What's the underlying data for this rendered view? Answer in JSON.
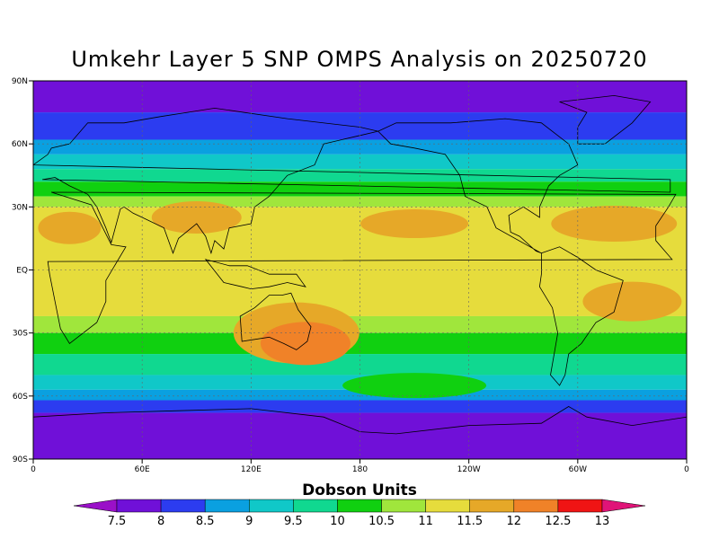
{
  "title": "Umkehr Layer 5 SNP OMPS Analysis on 20250720",
  "colorbar": {
    "title": "Dobson Units",
    "ticks": [
      "7.5",
      "8",
      "8.5",
      "9",
      "9.5",
      "10",
      "10.5",
      "11",
      "11.5",
      "12",
      "12.5",
      "13"
    ],
    "colors": [
      "#9a10c8",
      "#7010d8",
      "#2c3cf0",
      "#0aa0e0",
      "#10c8c8",
      "#10d890",
      "#10d010",
      "#a0e63c",
      "#e6dc3c",
      "#e6a828",
      "#f08228",
      "#f01414",
      "#e01478"
    ]
  },
  "chart_data": {
    "type": "heatmap",
    "title": "Umkehr Layer 5 SNP OMPS Analysis on 20250720",
    "units": "Dobson Units",
    "x_ticks": [
      "0",
      "60E",
      "120E",
      "180",
      "120W",
      "60W",
      "0"
    ],
    "y_ticks": [
      "90N",
      "60N",
      "30N",
      "EQ",
      "30S",
      "60S",
      "90S"
    ],
    "xlim": [
      0,
      360
    ],
    "ylim": [
      -90,
      90
    ],
    "grid": true,
    "zonal_bands": [
      {
        "lat_from": 90,
        "lat_to": 75,
        "value": 7.5
      },
      {
        "lat_from": 75,
        "lat_to": 62,
        "value": 8
      },
      {
        "lat_from": 62,
        "lat_to": 55,
        "value": 8.5
      },
      {
        "lat_from": 55,
        "lat_to": 48,
        "value": 9
      },
      {
        "lat_from": 48,
        "lat_to": 42,
        "value": 9.5
      },
      {
        "lat_from": 42,
        "lat_to": 35,
        "value": 10
      },
      {
        "lat_from": 35,
        "lat_to": 30,
        "value": 10.5
      },
      {
        "lat_from": 30,
        "lat_to": -22,
        "value": 11
      },
      {
        "lat_from": -22,
        "lat_to": -30,
        "value": 10.5
      },
      {
        "lat_from": -30,
        "lat_to": -40,
        "value": 10
      },
      {
        "lat_from": -40,
        "lat_to": -50,
        "value": 9.5
      },
      {
        "lat_from": -50,
        "lat_to": -57,
        "value": 9
      },
      {
        "lat_from": -57,
        "lat_to": -62,
        "value": 8.5
      },
      {
        "lat_from": -62,
        "lat_to": -68,
        "value": 8
      },
      {
        "lat_from": -68,
        "lat_to": -90,
        "value": 7.5
      }
    ],
    "regions": [
      {
        "name": "australia-maximum",
        "lon": 150,
        "lat": -35,
        "value": 12
      },
      {
        "name": "australia-surround",
        "lon": 145,
        "lat": -30,
        "value": 11.5
      },
      {
        "name": "north-atlantic-subtropics",
        "lon": 320,
        "lat": 22,
        "value": 11.5
      },
      {
        "name": "north-africa-subtropics",
        "lon": 20,
        "lat": 20,
        "value": 11.5
      },
      {
        "name": "central-asia-subtropics",
        "lon": 90,
        "lat": 25,
        "value": 11.5
      },
      {
        "name": "north-pacific-subtropics",
        "lon": 210,
        "lat": 22,
        "value": 11.5
      },
      {
        "name": "south-atlantic-subtropics",
        "lon": 330,
        "lat": -15,
        "value": 11.5
      },
      {
        "name": "south-pacific-minimum",
        "lon": 210,
        "lat": -55,
        "value": 10
      }
    ]
  }
}
